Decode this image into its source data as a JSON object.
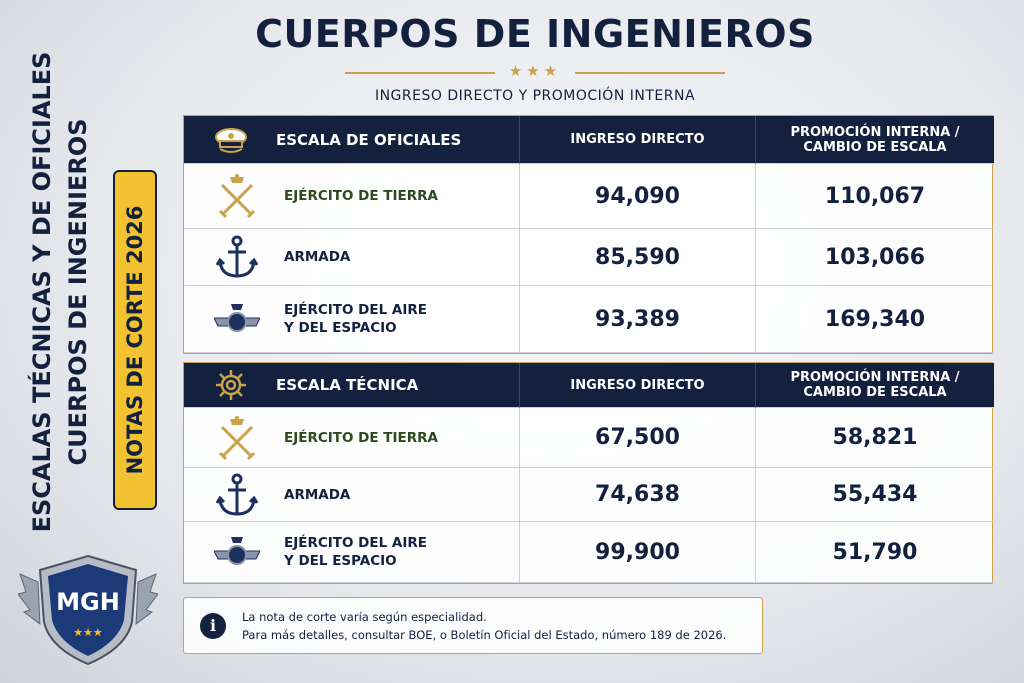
{
  "header": {
    "title": "CUERPOS DE INGENIEROS",
    "subtitle": "INGRESO DIRECTO Y PROMOCIÓN INTERNA"
  },
  "side": {
    "lines": [
      "ESCALAS TÉCNICAS Y DE OFICIALES",
      "CUERPOS DE INGENIEROS"
    ],
    "badge": "NOTAS DE CORTE 2026",
    "logo": "MGH"
  },
  "tables": [
    {
      "columns": [
        [
          "ESCALA DE OFICIALES"
        ],
        [
          "INGRESO DIRECTO"
        ],
        [
          "PROMOCIÓN INTERNA /",
          "CAMBIO DE ESCALA"
        ]
      ],
      "rows": [
        [
          [
            "EJÉRCITO DE TIERRA"
          ],
          "94,090",
          "110,067"
        ],
        [
          [
            "ARMADA"
          ],
          "85,590",
          "103,066"
        ],
        [
          [
            "EJÉRCITO DEL AIRE",
            "Y DEL ESPACIO"
          ],
          "93,389",
          "169,340"
        ]
      ]
    },
    {
      "columns": [
        [
          "ESCALA TÉCNICA"
        ],
        [
          "INGRESO DIRECTO"
        ],
        [
          "PROMOCIÓN INTERNA /",
          "CAMBIO DE ESCALA"
        ]
      ],
      "rows": [
        [
          [
            "EJÉRCITO DE TIERRA"
          ],
          "67,500",
          "58,821"
        ],
        [
          [
            "ARMADA"
          ],
          "74,638",
          "55,434"
        ],
        [
          [
            "EJÉRCITO DEL AIRE",
            "Y DEL ESPACIO"
          ],
          "99,900",
          "51,790"
        ]
      ]
    }
  ],
  "note": [
    "La nota de corte varía según especialidad.",
    "Para más detalles, consultar BOE, o Boletín Oficial del Estado, número 189 de 2026."
  ]
}
